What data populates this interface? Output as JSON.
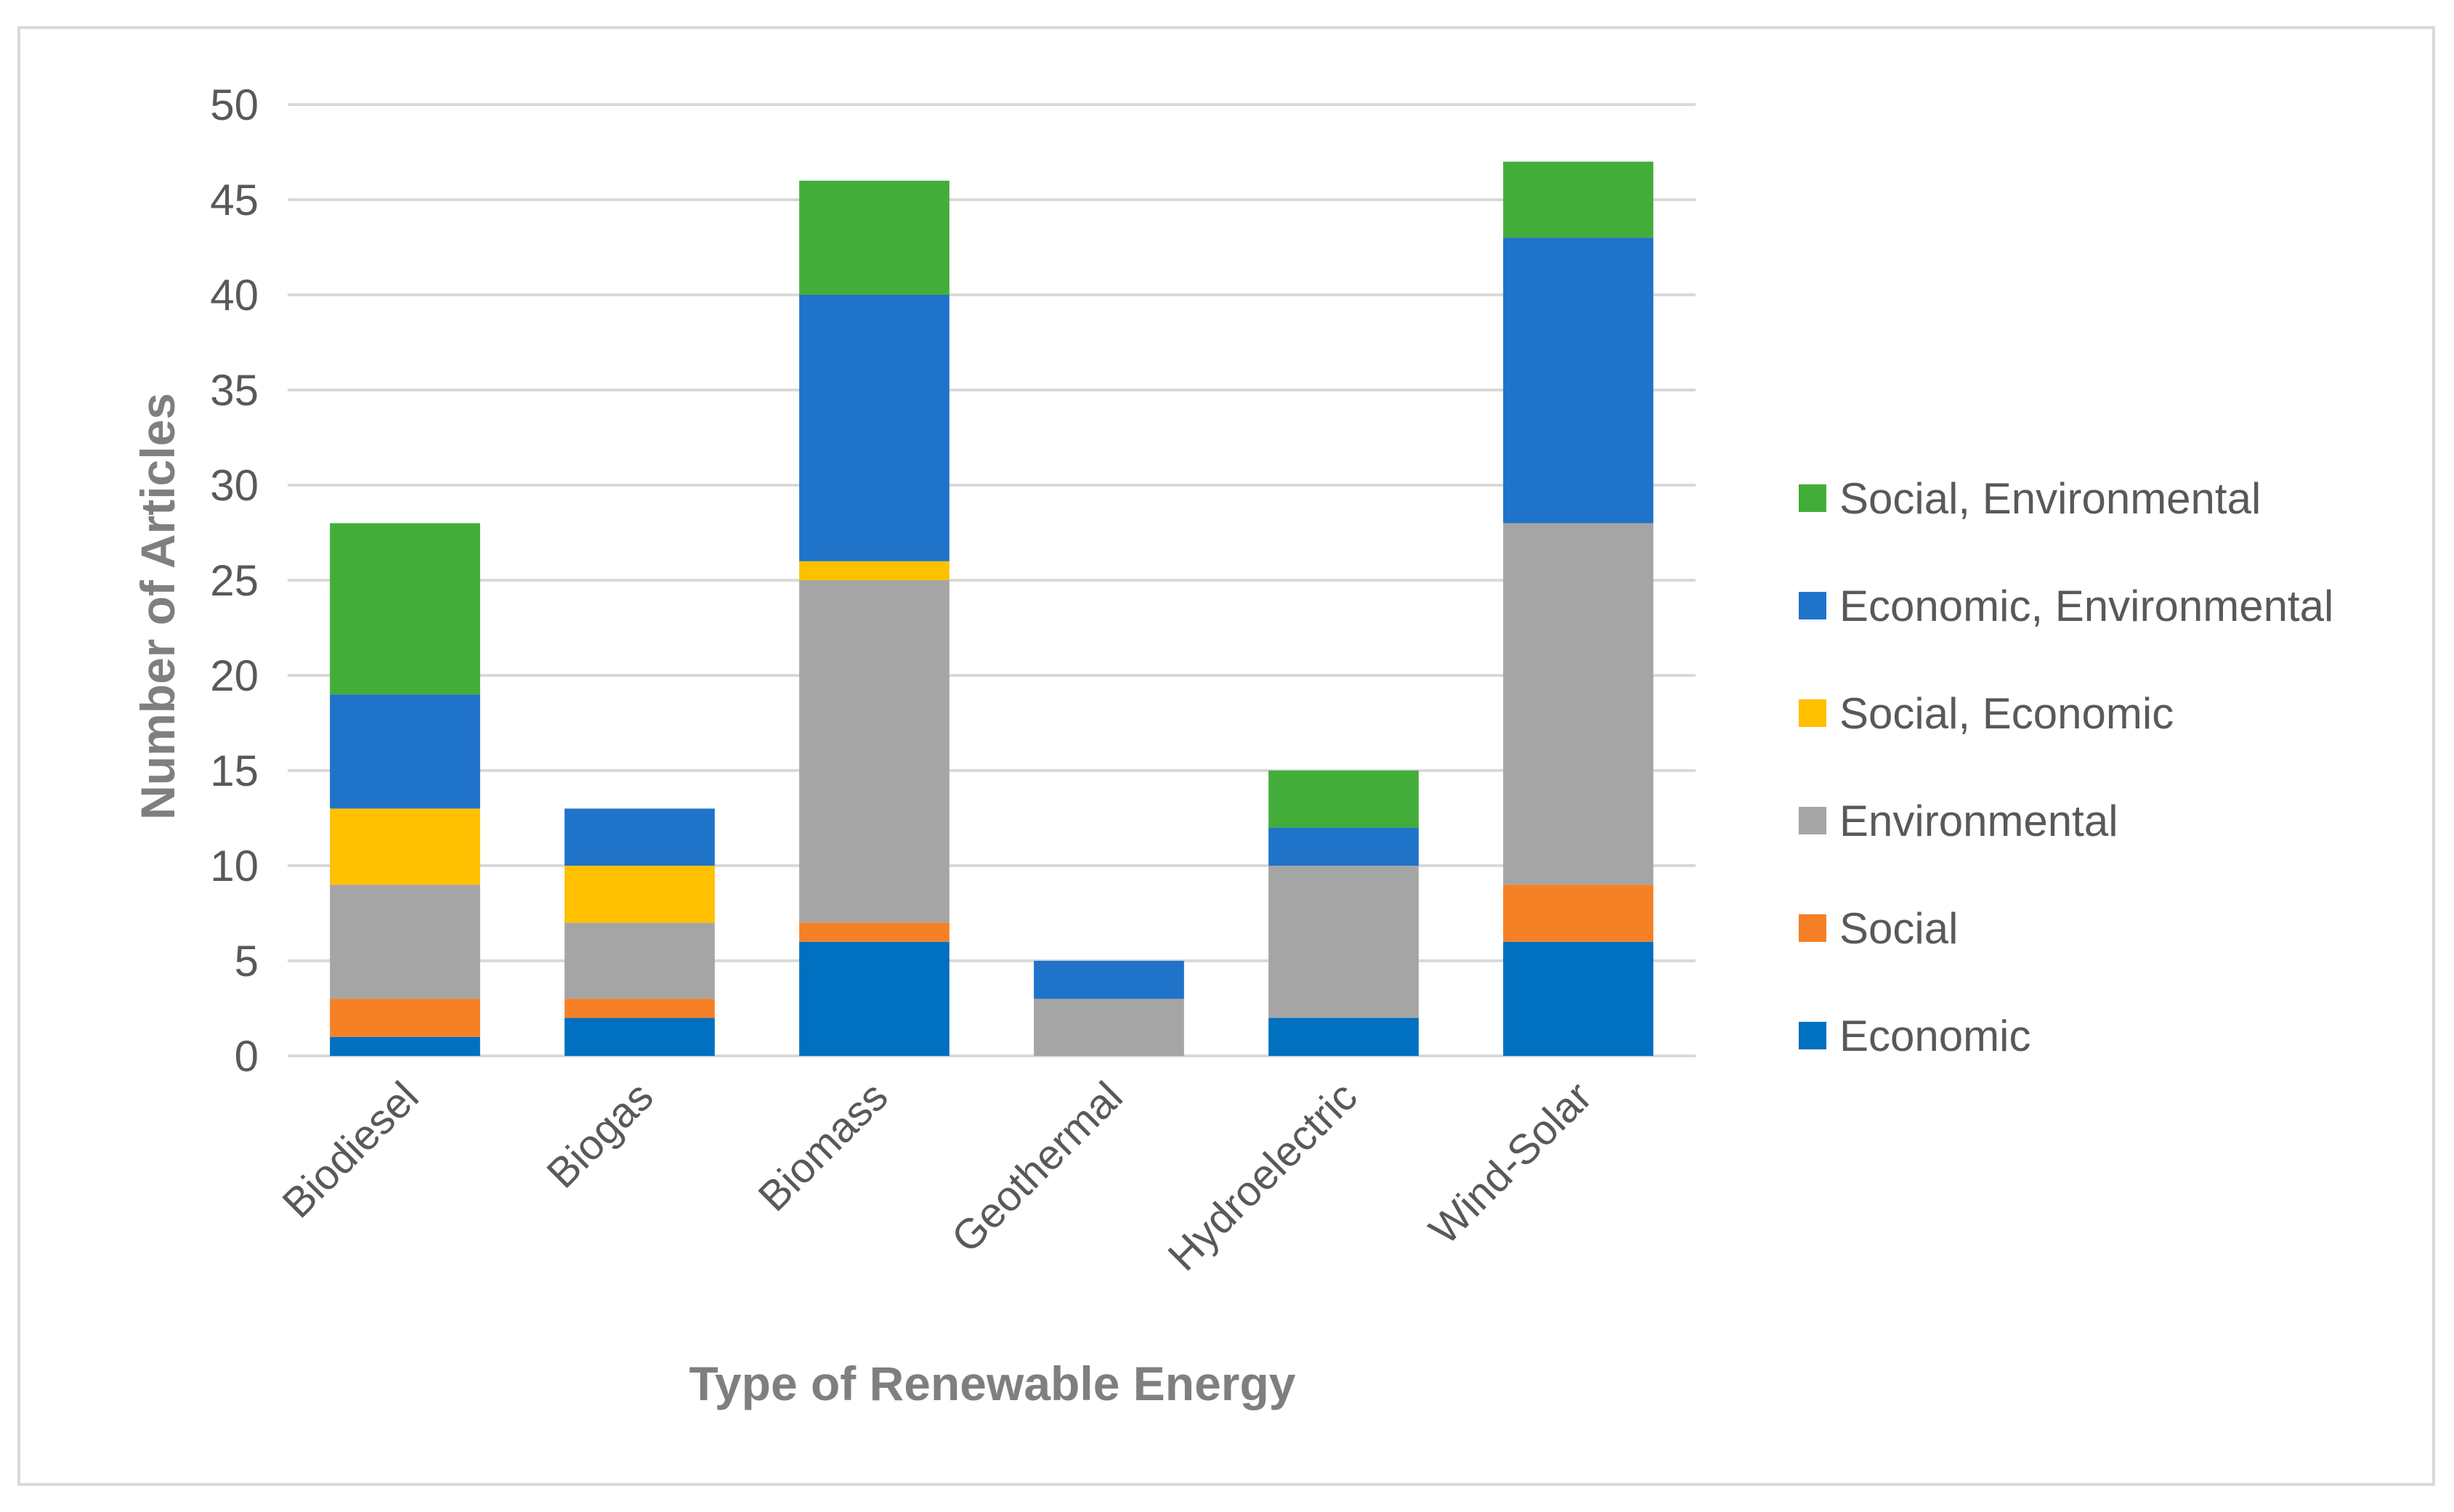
{
  "chart_data": {
    "type": "bar",
    "stacked": true,
    "title": "",
    "xlabel": "Type of Renewable Energy",
    "ylabel": "Number of Articles",
    "ylim": [
      0,
      50
    ],
    "ytick_step": 5,
    "grid": true,
    "legend_position": "right",
    "categories": [
      "Biodiesel",
      "Biogas",
      "Biomass",
      "Geothermal",
      "Hydroelectric",
      "Wind-Solar"
    ],
    "series": [
      {
        "name": "Economic",
        "color": "#0070c0",
        "values": [
          1,
          2,
          6,
          0,
          2,
          6
        ]
      },
      {
        "name": "Social",
        "color": "#f58025",
        "values": [
          2,
          1,
          1,
          0,
          0,
          3
        ]
      },
      {
        "name": "Environmental",
        "color": "#a5a5a5",
        "values": [
          6,
          4,
          18,
          3,
          8,
          19
        ]
      },
      {
        "name": "Social, Economic",
        "color": "#ffc000",
        "values": [
          4,
          3,
          1,
          0,
          0,
          0
        ]
      },
      {
        "name": "Economic, Environmental",
        "color": "#1f73c9",
        "values": [
          6,
          3,
          14,
          2,
          2,
          15
        ]
      },
      {
        "name": "Social, Environmental",
        "color": "#43ad3a",
        "values": [
          9,
          0,
          6,
          0,
          3,
          4
        ]
      }
    ]
  }
}
